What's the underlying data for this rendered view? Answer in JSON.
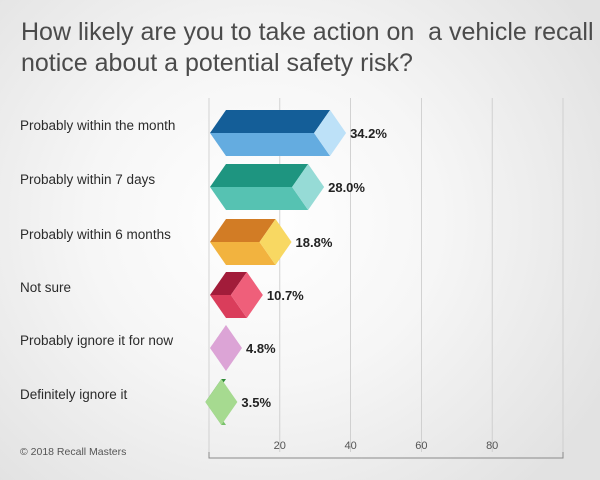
{
  "chart_data": {
    "type": "bar",
    "orientation": "horizontal",
    "title_lines": [
      "How likely are you to take action on  a vehicle recall",
      "notice about a potential safety risk?"
    ],
    "categories": [
      "Probably within the month",
      "Probably within 7 days",
      "Probably within 6 months",
      "Not sure",
      "Probably ignore it for now",
      "Definitely ignore it"
    ],
    "values": [
      34.2,
      28.0,
      18.8,
      10.7,
      4.8,
      3.5
    ],
    "value_labels": [
      "34.2%",
      "28.0%",
      "18.8%",
      "10.7%",
      "4.8%",
      "3.5%"
    ],
    "x_ticks": [
      20,
      40,
      60,
      80
    ],
    "x_tick_labels": [
      "20",
      "40",
      "60",
      "80"
    ],
    "xlim": [
      0,
      100
    ],
    "grid": "vertical",
    "bar_colors": [
      {
        "top": "#145E98",
        "front": "#64ACE0",
        "cap": "#BDE1F8"
      },
      {
        "top": "#1E9580",
        "front": "#56C2B2",
        "cap": "#96DBD6"
      },
      {
        "top": "#D27C25",
        "front": "#F2B33F",
        "cap": "#F8D862"
      },
      {
        "top": "#A21C3A",
        "front": "#DA3D5B",
        "cap": "#EF5F7A"
      },
      {
        "top": "#7B2C82",
        "front": "#C987C4",
        "cap": "#DCA4D6"
      },
      {
        "top": "#2F8A39",
        "front": "#78C16B",
        "cap": "#A6DA90"
      }
    ]
  },
  "footer": {
    "copyright": "© 2018 Recall Masters"
  }
}
